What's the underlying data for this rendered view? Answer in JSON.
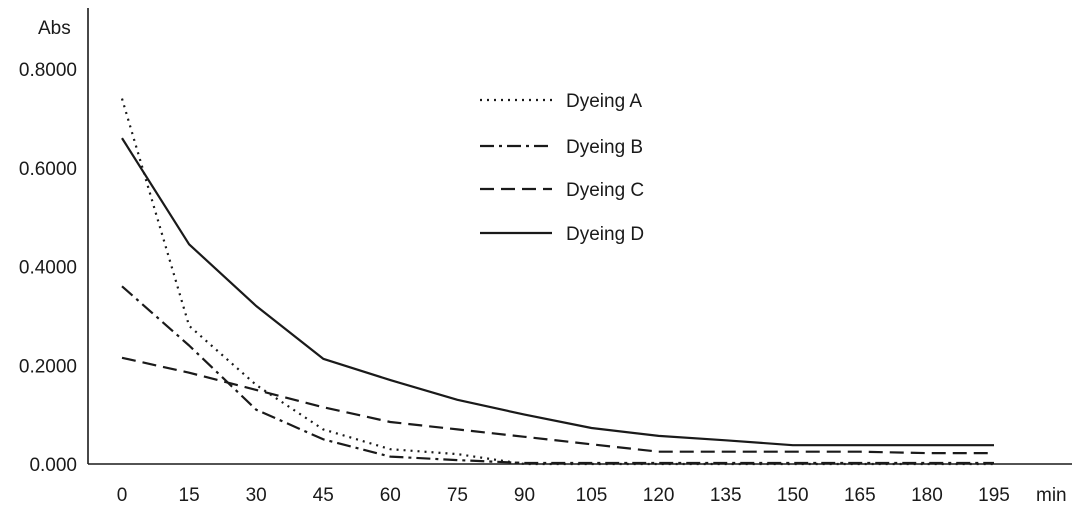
{
  "chart_data": {
    "type": "line",
    "title": "",
    "xlabel": "min",
    "ylabel": "Abs",
    "x": [
      0,
      15,
      30,
      45,
      60,
      75,
      90,
      105,
      120,
      135,
      150,
      165,
      180,
      195
    ],
    "x_tick_labels": [
      "0",
      "15",
      "30",
      "45",
      "60",
      "75",
      "90",
      "105",
      "120",
      "135",
      "150",
      "165",
      "180",
      "195"
    ],
    "xlim": [
      0,
      195
    ],
    "y_ticks": [
      0,
      0.2,
      0.4,
      0.6,
      0.8
    ],
    "y_tick_labels": [
      "0.000",
      "0.2000",
      "0.4000",
      "0.6000",
      "0.8000"
    ],
    "ylim": [
      0,
      0.8
    ],
    "grid": false,
    "legend_position": "top-center",
    "series": [
      {
        "name": "Dyeing A",
        "style": "dotted",
        "x": [
          0,
          15,
          30,
          45,
          60,
          75,
          90,
          105,
          120,
          135,
          150,
          165,
          180,
          195
        ],
        "values": [
          0.74,
          0.28,
          0.16,
          0.07,
          0.03,
          0.02,
          0.0,
          0.0,
          0.0,
          0.0,
          0.0,
          0.0,
          0.0,
          0.0
        ]
      },
      {
        "name": "Dyeing B",
        "style": "dash-dot",
        "x": [
          0,
          15,
          30,
          45,
          60,
          75,
          90,
          105,
          120,
          135,
          150,
          165,
          180,
          195
        ],
        "values": [
          0.36,
          0.24,
          0.11,
          0.05,
          0.015,
          0.008,
          0.002,
          0.002,
          0.002,
          0.002,
          0.002,
          0.002,
          0.002,
          0.002
        ]
      },
      {
        "name": "Dyeing C",
        "style": "dashed",
        "x": [
          0,
          15,
          30,
          45,
          60,
          75,
          90,
          105,
          120,
          135,
          150,
          165,
          180,
          195
        ],
        "values": [
          0.215,
          0.185,
          0.15,
          0.115,
          0.085,
          0.07,
          0.055,
          0.04,
          0.025,
          0.025,
          0.025,
          0.025,
          0.022,
          0.022
        ]
      },
      {
        "name": "Dyeing D",
        "style": "solid",
        "x": [
          0,
          15,
          30,
          45,
          60,
          75,
          90,
          105,
          120,
          135,
          150,
          165,
          180,
          195
        ],
        "values": [
          0.66,
          0.445,
          0.32,
          0.213,
          0.17,
          0.13,
          0.1,
          0.073,
          0.057,
          0.048,
          0.038,
          0.038,
          0.038,
          0.038
        ]
      }
    ]
  }
}
